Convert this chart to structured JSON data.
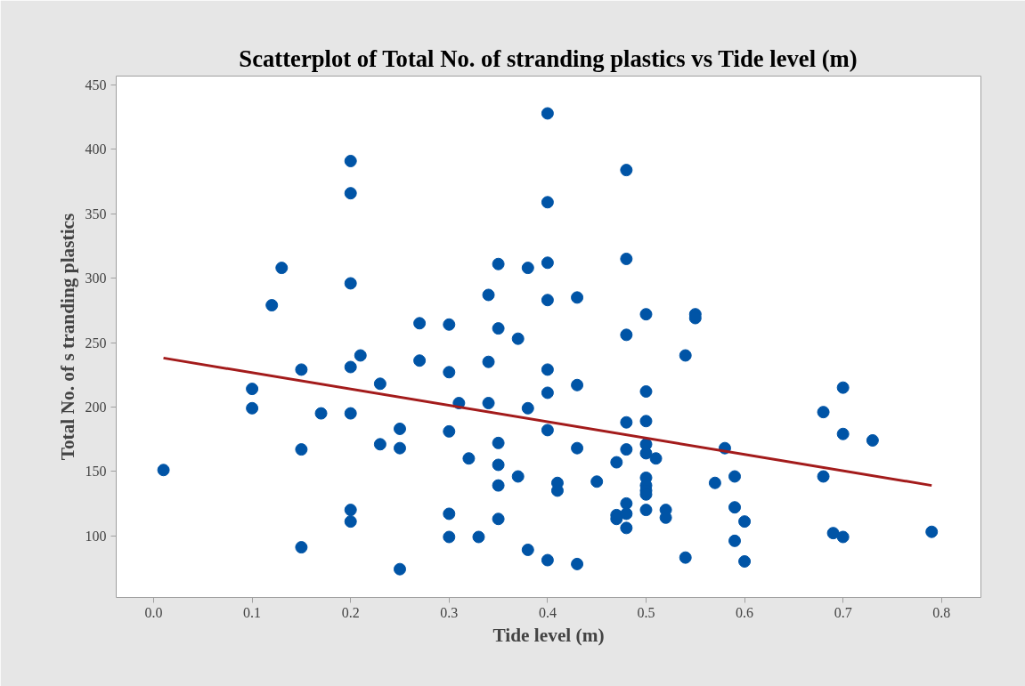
{
  "chart_data": {
    "type": "scatter",
    "title": "Scatterplot of Total No. of stranding plastics vs Tide level (m)",
    "xlabel": "Tide level (m)",
    "ylabel": "Total No. of s tranding plastics",
    "xlim": [
      -0.038,
      0.84
    ],
    "ylim": [
      52,
      457
    ],
    "xticks": [
      {
        "value": 0,
        "label": "0.0"
      },
      0.1,
      0.2,
      0.3,
      0.4,
      0.5,
      0.6,
      0.7,
      0.8
    ],
    "yticks": [
      100,
      150,
      200,
      250,
      300,
      350,
      400,
      450
    ],
    "grid": false,
    "series": [
      {
        "color": "#0054a6",
        "marker": "circle",
        "x": [
          0.01,
          0.1,
          0.1,
          0.12,
          0.13,
          0.15,
          0.15,
          0.15,
          0.17,
          0.2,
          0.2,
          0.2,
          0.2,
          0.2,
          0.2,
          0.2,
          0.21,
          0.23,
          0.23,
          0.25,
          0.25,
          0.25,
          0.27,
          0.27,
          0.3,
          0.3,
          0.3,
          0.3,
          0.3,
          0.31,
          0.32,
          0.33,
          0.34,
          0.34,
          0.34,
          0.35,
          0.35,
          0.35,
          0.35,
          0.35,
          0.35,
          0.37,
          0.37,
          0.38,
          0.38,
          0.38,
          0.4,
          0.4,
          0.4,
          0.4,
          0.4,
          0.4,
          0.4,
          0.4,
          0.41,
          0.41,
          0.43,
          0.43,
          0.43,
          0.43,
          0.45,
          0.47,
          0.47,
          0.47,
          0.48,
          0.48,
          0.48,
          0.48,
          0.48,
          0.48,
          0.48,
          0.48,
          0.5,
          0.5,
          0.5,
          0.5,
          0.5,
          0.5,
          0.5,
          0.5,
          0.5,
          0.5,
          0.51,
          0.52,
          0.52,
          0.54,
          0.54,
          0.55,
          0.55,
          0.57,
          0.58,
          0.59,
          0.59,
          0.59,
          0.6,
          0.6,
          0.68,
          0.68,
          0.69,
          0.7,
          0.7,
          0.7,
          0.73,
          0.79
        ],
        "values": [
          151,
          214,
          199,
          279,
          308,
          229,
          167,
          91,
          195,
          391,
          366,
          296,
          231,
          195,
          120,
          111,
          240,
          218,
          171,
          183,
          168,
          74,
          265,
          236,
          264,
          227,
          181,
          117,
          99,
          203,
          160,
          99,
          287,
          235,
          203,
          311,
          261,
          172,
          155,
          139,
          113,
          253,
          146,
          308,
          199,
          89,
          428,
          359,
          312,
          283,
          229,
          211,
          182,
          81,
          141,
          135,
          285,
          217,
          168,
          78,
          142,
          157,
          116,
          113,
          384,
          315,
          256,
          188,
          167,
          125,
          117,
          106,
          272,
          212,
          189,
          171,
          164,
          145,
          139,
          135,
          132,
          120,
          160,
          120,
          114,
          240,
          83,
          272,
          269,
          141,
          168,
          146,
          122,
          96,
          111,
          80,
          196,
          146,
          102,
          215,
          179,
          99,
          174,
          103
        ]
      },
      {
        "type": "line",
        "color": "#a31b1b",
        "x": [
          0.01,
          0.79
        ],
        "values": [
          238,
          139
        ]
      }
    ]
  }
}
